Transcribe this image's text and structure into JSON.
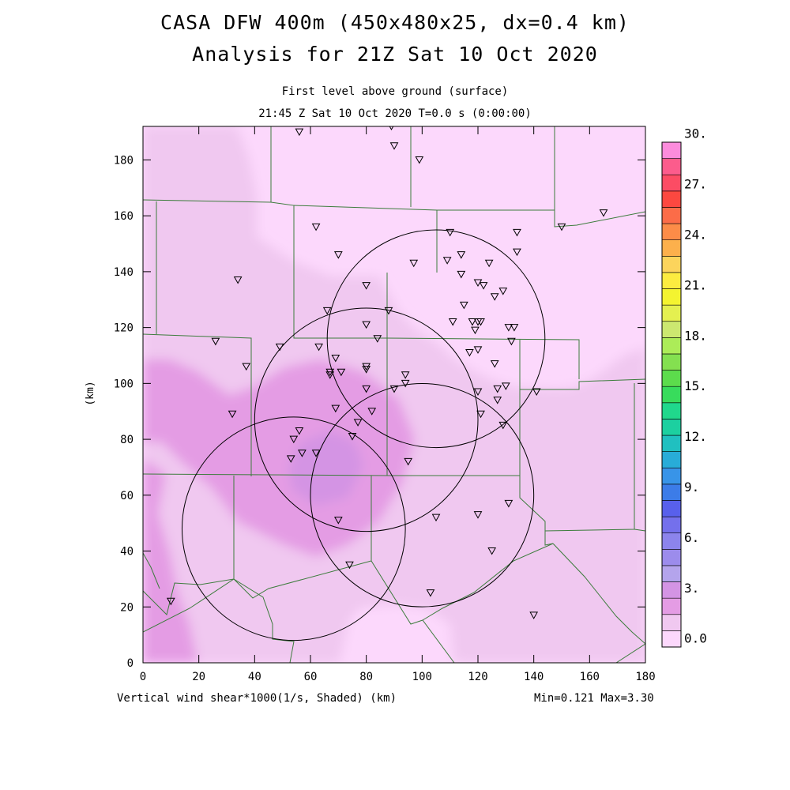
{
  "title": {
    "line1": "CASA DFW 400m (450x480x25, dx=0.4 km)",
    "line2": "Analysis for 21Z Sat 10 Oct 2020",
    "line3": "First level above ground (surface)",
    "line4": "21:45 Z Sat 10 Oct 2020    T=0.0 s (0:00:00)"
  },
  "footer": {
    "left": "Vertical wind shear*1000(1/s, Shaded)  (km)",
    "right": "Min=0.121 Max=3.30"
  },
  "chart_data": {
    "type": "heatmap",
    "xlabel": "",
    "ylabel": "(km)",
    "xlim": [
      0,
      180
    ],
    "ylim": [
      0,
      192
    ],
    "xticks": [
      0,
      20,
      40,
      60,
      80,
      100,
      120,
      140,
      160,
      180
    ],
    "yticks": [
      0,
      20,
      40,
      60,
      80,
      100,
      120,
      140,
      160,
      180
    ],
    "colorbar": {
      "labels": [
        {
          "v": 0,
          "t": "0.0"
        },
        {
          "v": 3,
          "t": "3."
        },
        {
          "v": 6,
          "t": "6."
        },
        {
          "v": 9,
          "t": "9."
        },
        {
          "v": 12,
          "t": "12."
        },
        {
          "v": 15,
          "t": "15."
        },
        {
          "v": 18,
          "t": "18."
        },
        {
          "v": 21,
          "t": "21."
        },
        {
          "v": 24,
          "t": "24."
        },
        {
          "v": 27,
          "t": "27."
        },
        {
          "v": 30,
          "t": "30."
        }
      ],
      "colors": [
        "#fcd8fc",
        "#f0c8f0",
        "#e49ce4",
        "#d494e4",
        "#b4a4ec",
        "#9c8cec",
        "#8c84ec",
        "#7470ec",
        "#5860ec",
        "#3c7ce8",
        "#3894e8",
        "#28acd8",
        "#20c0c0",
        "#1cd0a0",
        "#20d88c",
        "#38dc5c",
        "#5cdc4c",
        "#84e050",
        "#acec58",
        "#cce870",
        "#e4f050",
        "#f4f430",
        "#fcec40",
        "#fcd45c",
        "#fcb04c",
        "#fc8c48",
        "#fc6c48",
        "#fc4840",
        "#fc4c64",
        "#fc5c8c",
        "#fc8cdc"
      ]
    },
    "shear_fields": [
      {
        "level": "0-1",
        "color": "#fcd8fc"
      },
      {
        "level": "1-2",
        "color": "#f0c8f0"
      },
      {
        "level": "2-3",
        "color": "#e49ce4"
      },
      {
        "level": "3-4",
        "color": "#d494e4"
      }
    ],
    "radar_rings": [
      {
        "cx": 105,
        "cy": 116,
        "r": 39
      },
      {
        "cx": 80,
        "cy": 87,
        "r": 40
      },
      {
        "cx": 100,
        "cy": 60,
        "r": 40
      },
      {
        "cx": 54,
        "cy": 48,
        "r": 40
      }
    ],
    "stations": [
      [
        56,
        190
      ],
      [
        89,
        192
      ],
      [
        90,
        185
      ],
      [
        99,
        180
      ],
      [
        165,
        161
      ],
      [
        150,
        156
      ],
      [
        62,
        156
      ],
      [
        110,
        154
      ],
      [
        134,
        154
      ],
      [
        114,
        146
      ],
      [
        70,
        146
      ],
      [
        109,
        144
      ],
      [
        134,
        147
      ],
      [
        97,
        143
      ],
      [
        124,
        143
      ],
      [
        34,
        137
      ],
      [
        80,
        135
      ],
      [
        114,
        139
      ],
      [
        120,
        136
      ],
      [
        122,
        135
      ],
      [
        129,
        133
      ],
      [
        126,
        131
      ],
      [
        115,
        128
      ],
      [
        66,
        126
      ],
      [
        88,
        126
      ],
      [
        111,
        122
      ],
      [
        118,
        122
      ],
      [
        120,
        122
      ],
      [
        80,
        121
      ],
      [
        121,
        122
      ],
      [
        119,
        119
      ],
      [
        131,
        120
      ],
      [
        133,
        120
      ],
      [
        26,
        115
      ],
      [
        84,
        116
      ],
      [
        132,
        115
      ],
      [
        49,
        113
      ],
      [
        63,
        113
      ],
      [
        120,
        112
      ],
      [
        117,
        111
      ],
      [
        69,
        109
      ],
      [
        37,
        106
      ],
      [
        80,
        106
      ],
      [
        80,
        105
      ],
      [
        126,
        107
      ],
      [
        67,
        104
      ],
      [
        67,
        103
      ],
      [
        71,
        104
      ],
      [
        94,
        103
      ],
      [
        130,
        99
      ],
      [
        80,
        98
      ],
      [
        90,
        98
      ],
      [
        94,
        100
      ],
      [
        127,
        98
      ],
      [
        120,
        97
      ],
      [
        141,
        97
      ],
      [
        127,
        94
      ],
      [
        32,
        89
      ],
      [
        69,
        91
      ],
      [
        82,
        90
      ],
      [
        121,
        89
      ],
      [
        129,
        85
      ],
      [
        77,
        86
      ],
      [
        56,
        83
      ],
      [
        54,
        80
      ],
      [
        75,
        81
      ],
      [
        53,
        73
      ],
      [
        57,
        75
      ],
      [
        62,
        75
      ],
      [
        95,
        72
      ],
      [
        131,
        57
      ],
      [
        105,
        52
      ],
      [
        120,
        53
      ],
      [
        70,
        51
      ],
      [
        125,
        40
      ],
      [
        74,
        35
      ],
      [
        103,
        25
      ],
      [
        10,
        22
      ],
      [
        140,
        17
      ]
    ]
  }
}
